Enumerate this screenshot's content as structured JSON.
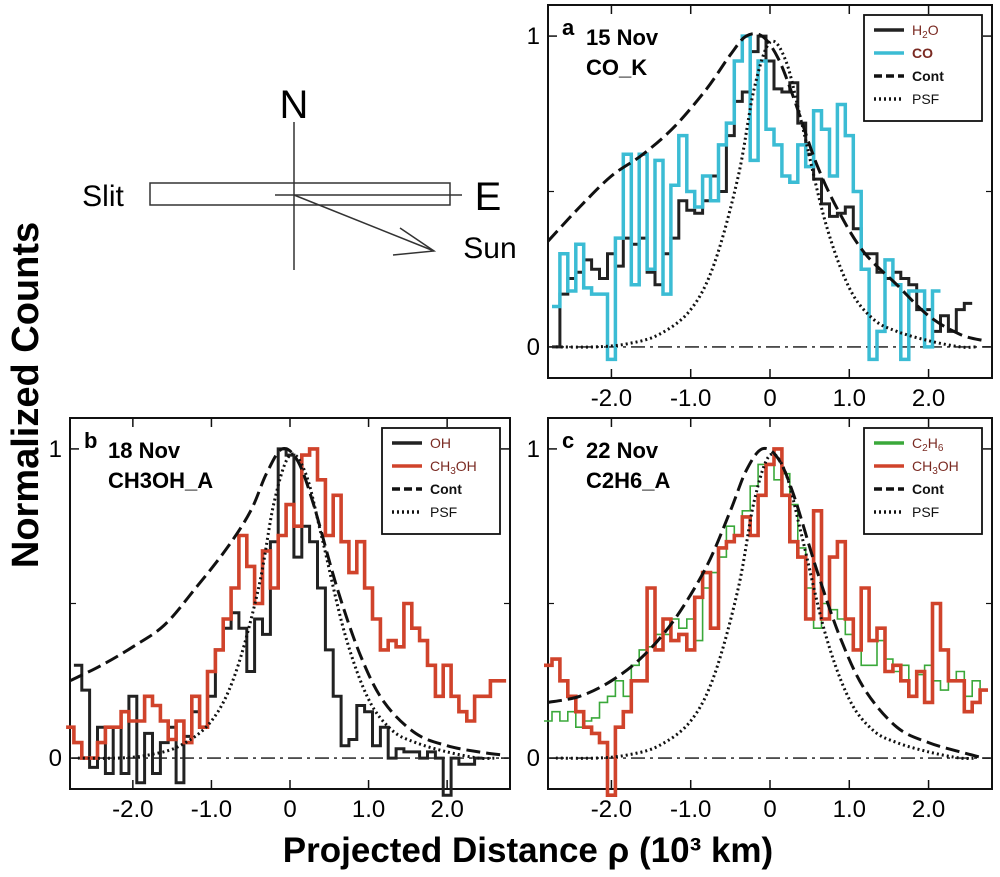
{
  "figure": {
    "ylabel": "Normalized Counts",
    "xlabel": "Projected Distance ρ (10³ km)"
  },
  "compass": {
    "north": "N",
    "east": "E",
    "slit": "Slit",
    "sun": "Sun"
  },
  "chart_data": [
    {
      "type": "line",
      "panel": "a",
      "title": [
        "15 Nov",
        "CO_K"
      ],
      "xlim": [
        -2.8,
        2.8
      ],
      "ylim": [
        -0.1,
        1.1
      ],
      "xticks": [
        "-2.0",
        "-1.0",
        "0",
        "1.0",
        "2.0"
      ],
      "yticks": [
        "0",
        "1"
      ],
      "legend_position": "top-right",
      "series": [
        {
          "name": "H2O",
          "color": "#222222",
          "style": "step",
          "x": [
            -2.7,
            -2.6,
            -2.5,
            -2.4,
            -2.3,
            -2.2,
            -2.1,
            -2.0,
            -1.9,
            -1.8,
            -1.7,
            -1.6,
            -1.5,
            -1.4,
            -1.3,
            -1.2,
            -1.1,
            -1.0,
            -0.9,
            -0.8,
            -0.7,
            -0.6,
            -0.5,
            -0.4,
            -0.3,
            -0.2,
            -0.1,
            0.0,
            0.1,
            0.2,
            0.3,
            0.4,
            0.5,
            0.6,
            0.7,
            0.8,
            0.9,
            1.0,
            1.1,
            1.2,
            1.3,
            1.4,
            1.5,
            1.6,
            1.7,
            1.8,
            1.9,
            2.0,
            2.1,
            2.2,
            2.3,
            2.4,
            2.5
          ],
          "y": [
            0.0,
            0.17,
            0.22,
            0.24,
            0.28,
            0.25,
            0.22,
            0.3,
            0.26,
            0.35,
            0.33,
            0.35,
            0.24,
            0.2,
            0.3,
            0.35,
            0.47,
            0.44,
            0.43,
            0.47,
            0.55,
            0.5,
            0.68,
            0.79,
            0.82,
            0.95,
            1.0,
            0.92,
            0.83,
            0.82,
            0.85,
            0.72,
            0.62,
            0.54,
            0.46,
            0.42,
            0.43,
            0.45,
            0.38,
            0.3,
            0.3,
            0.24,
            0.22,
            0.24,
            0.22,
            0.2,
            0.12,
            0.12,
            0.05,
            0.1,
            0.05,
            0.12,
            0.14
          ]
        },
        {
          "name": "CO",
          "color": "#3bbcd4",
          "style": "step",
          "x": [
            -2.7,
            -2.6,
            -2.5,
            -2.4,
            -2.3,
            -2.2,
            -2.1,
            -2.0,
            -1.9,
            -1.8,
            -1.7,
            -1.6,
            -1.5,
            -1.4,
            -1.3,
            -1.2,
            -1.1,
            -1.0,
            -0.9,
            -0.8,
            -0.7,
            -0.6,
            -0.5,
            -0.4,
            -0.3,
            -0.2,
            -0.1,
            0.0,
            0.1,
            0.2,
            0.3,
            0.4,
            0.5,
            0.6,
            0.7,
            0.8,
            0.9,
            1.0,
            1.1,
            1.2,
            1.3,
            1.4,
            1.5,
            1.6,
            1.7,
            1.8,
            1.9,
            2.0,
            2.1
          ],
          "y": [
            0.13,
            0.3,
            0.18,
            0.33,
            0.19,
            0.17,
            0.17,
            -0.04,
            0.35,
            0.62,
            0.2,
            0.62,
            0.25,
            0.6,
            0.17,
            0.52,
            0.68,
            0.5,
            0.45,
            0.55,
            0.47,
            0.65,
            0.72,
            0.92,
            1.0,
            0.6,
            0.92,
            0.7,
            0.65,
            0.55,
            0.53,
            0.65,
            0.58,
            0.76,
            0.7,
            0.55,
            0.78,
            0.68,
            0.5,
            0.25,
            -0.04,
            0.05,
            0.28,
            0.2,
            -0.04,
            0.18,
            0.18,
            0.0,
            0.18
          ]
        },
        {
          "name": "Cont",
          "color": "#111111",
          "style": "dashed",
          "x": [
            -2.8,
            -2.4,
            -2.0,
            -1.6,
            -1.2,
            -0.8,
            -0.5,
            -0.3,
            -0.1,
            0.1,
            0.3,
            0.6,
            0.9,
            1.2,
            1.6,
            2.0,
            2.4,
            2.7
          ],
          "y": [
            0.34,
            0.45,
            0.55,
            0.62,
            0.71,
            0.83,
            0.94,
            1.0,
            1.0,
            0.93,
            0.8,
            0.58,
            0.42,
            0.3,
            0.2,
            0.1,
            0.04,
            0.02
          ]
        },
        {
          "name": "PSF",
          "color": "#111111",
          "style": "dotted",
          "x": [
            -2.7,
            -2.2,
            -1.8,
            -1.4,
            -1.0,
            -0.7,
            -0.4,
            -0.2,
            0.0,
            0.2,
            0.4,
            0.7,
            1.0,
            1.3,
            1.6,
            2.0,
            2.4,
            2.6
          ],
          "y": [
            0.0,
            0.0,
            0.01,
            0.04,
            0.12,
            0.27,
            0.55,
            0.83,
            0.98,
            0.92,
            0.72,
            0.4,
            0.19,
            0.09,
            0.05,
            0.02,
            0.0,
            0.0
          ]
        }
      ]
    },
    {
      "type": "line",
      "panel": "b",
      "title": [
        "18 Nov",
        "CH3OH_A"
      ],
      "xlim": [
        -2.8,
        2.8
      ],
      "ylim": [
        -0.1,
        1.1
      ],
      "xticks": [
        "-2.0",
        "-1.0",
        "0",
        "1.0",
        "2.0"
      ],
      "yticks": [
        "0",
        "1"
      ],
      "legend_position": "top-right",
      "series": [
        {
          "name": "OH",
          "color": "#222222",
          "style": "step",
          "x": [
            -2.7,
            -2.6,
            -2.5,
            -2.4,
            -2.3,
            -2.2,
            -2.1,
            -2.0,
            -1.9,
            -1.8,
            -1.7,
            -1.6,
            -1.5,
            -1.4,
            -1.3,
            -1.2,
            -1.1,
            -1.0,
            -0.9,
            -0.8,
            -0.7,
            -0.6,
            -0.5,
            -0.4,
            -0.3,
            -0.2,
            -0.1,
            0.0,
            0.1,
            0.2,
            0.3,
            0.4,
            0.5,
            0.6,
            0.7,
            0.8,
            0.9,
            1.0,
            1.1,
            1.2,
            1.3,
            1.4,
            1.5,
            1.6,
            1.7,
            1.8,
            1.9,
            2.0,
            2.1,
            2.2,
            2.3,
            2.4
          ],
          "y": [
            0.3,
            0.22,
            -0.03,
            0.1,
            -0.05,
            0.1,
            -0.05,
            0.2,
            -0.08,
            0.08,
            -0.05,
            0.05,
            0.1,
            -0.08,
            0.07,
            0.15,
            0.1,
            0.2,
            0.35,
            0.42,
            0.47,
            0.42,
            0.28,
            0.45,
            0.4,
            0.7,
            1.0,
            0.98,
            0.65,
            0.75,
            0.7,
            0.55,
            0.35,
            0.2,
            0.04,
            0.06,
            0.17,
            0.15,
            0.04,
            0.1,
            0.0,
            0.03,
            0.02,
            0.02,
            0.0,
            0.02,
            0.0,
            -0.12,
            0.0,
            -0.02,
            -0.02,
            0.0
          ]
        },
        {
          "name": "CH3OH",
          "color": "#d0432b",
          "style": "step",
          "x": [
            -2.8,
            -2.7,
            -2.6,
            -2.5,
            -2.4,
            -2.3,
            -2.2,
            -2.1,
            -2.0,
            -1.9,
            -1.8,
            -1.7,
            -1.6,
            -1.5,
            -1.4,
            -1.3,
            -1.2,
            -1.1,
            -1.0,
            -0.9,
            -0.8,
            -0.7,
            -0.6,
            -0.5,
            -0.4,
            -0.3,
            -0.2,
            -0.1,
            0.0,
            0.1,
            0.2,
            0.3,
            0.4,
            0.5,
            0.6,
            0.7,
            0.8,
            0.9,
            1.0,
            1.1,
            1.2,
            1.3,
            1.4,
            1.5,
            1.6,
            1.7,
            1.8,
            1.9,
            2.0,
            2.1,
            2.2,
            2.3,
            2.4,
            2.5,
            2.6,
            2.7
          ],
          "y": [
            0.1,
            0.05,
            0.0,
            0.0,
            0.05,
            0.1,
            0.1,
            0.15,
            0.12,
            0.12,
            0.2,
            0.17,
            0.12,
            0.06,
            0.12,
            0.05,
            0.2,
            0.1,
            0.28,
            0.35,
            0.45,
            0.55,
            0.72,
            0.62,
            0.5,
            0.67,
            0.55,
            0.72,
            0.82,
            0.75,
            0.98,
            1.0,
            0.9,
            0.72,
            0.85,
            0.7,
            0.6,
            0.7,
            0.55,
            0.45,
            0.35,
            0.38,
            0.36,
            0.5,
            0.42,
            0.38,
            0.3,
            0.2,
            0.3,
            0.2,
            0.15,
            0.12,
            0.2,
            0.2,
            0.25,
            0.25
          ]
        },
        {
          "name": "Cont",
          "color": "#111111",
          "style": "dashed",
          "x": [
            -2.8,
            -2.4,
            -2.0,
            -1.6,
            -1.2,
            -0.8,
            -0.5,
            -0.3,
            -0.1,
            0.1,
            0.3,
            0.6,
            0.9,
            1.2,
            1.6,
            2.0,
            2.4,
            2.7
          ],
          "y": [
            0.25,
            0.3,
            0.36,
            0.43,
            0.55,
            0.68,
            0.8,
            0.92,
            1.0,
            0.96,
            0.82,
            0.55,
            0.33,
            0.18,
            0.08,
            0.04,
            0.02,
            0.01
          ]
        },
        {
          "name": "PSF",
          "color": "#111111",
          "style": "dotted",
          "x": [
            -2.7,
            -2.2,
            -1.8,
            -1.4,
            -1.0,
            -0.7,
            -0.4,
            -0.2,
            0.0,
            0.2,
            0.4,
            0.7,
            1.0,
            1.3,
            1.6,
            2.0,
            2.4,
            2.6
          ],
          "y": [
            0.0,
            0.0,
            0.01,
            0.04,
            0.12,
            0.27,
            0.55,
            0.83,
            0.98,
            0.92,
            0.72,
            0.4,
            0.19,
            0.09,
            0.05,
            0.02,
            0.0,
            0.0
          ]
        }
      ]
    },
    {
      "type": "line",
      "panel": "c",
      "title": [
        "22 Nov",
        "C2H6_A"
      ],
      "xlim": [
        -2.8,
        2.8
      ],
      "ylim": [
        -0.1,
        1.1
      ],
      "xticks": [
        "-2.0",
        "-1.0",
        "0",
        "1.0",
        "2.0"
      ],
      "yticks": [
        "0",
        "1"
      ],
      "legend_position": "top-right",
      "series": [
        {
          "name": "C2H6",
          "color": "#3aa83a",
          "style": "step",
          "x": [
            -2.8,
            -2.7,
            -2.6,
            -2.5,
            -2.4,
            -2.3,
            -2.2,
            -2.1,
            -2.0,
            -1.9,
            -1.8,
            -1.7,
            -1.6,
            -1.5,
            -1.4,
            -1.3,
            -1.2,
            -1.1,
            -1.0,
            -0.9,
            -0.8,
            -0.7,
            -0.6,
            -0.5,
            -0.4,
            -0.3,
            -0.2,
            -0.1,
            0.0,
            0.1,
            0.2,
            0.3,
            0.4,
            0.5,
            0.6,
            0.7,
            0.8,
            0.9,
            1.0,
            1.1,
            1.2,
            1.3,
            1.4,
            1.5,
            1.6,
            1.7,
            1.8,
            1.9,
            2.0,
            2.1,
            2.2,
            2.3,
            2.4,
            2.5,
            2.6,
            2.7
          ],
          "y": [
            0.12,
            0.15,
            0.12,
            0.15,
            0.1,
            0.12,
            0.13,
            0.18,
            0.2,
            0.25,
            0.2,
            0.3,
            0.35,
            0.36,
            0.4,
            0.4,
            0.45,
            0.42,
            0.45,
            0.38,
            0.55,
            0.6,
            0.65,
            0.75,
            0.72,
            0.8,
            0.88,
            0.95,
            0.95,
            0.9,
            0.92,
            0.82,
            0.68,
            0.55,
            0.42,
            0.5,
            0.48,
            0.45,
            0.4,
            0.35,
            0.3,
            0.3,
            0.38,
            0.32,
            0.28,
            0.3,
            0.2,
            0.27,
            0.3,
            0.25,
            0.22,
            0.25,
            0.28,
            0.2,
            0.25,
            0.22
          ]
        },
        {
          "name": "CH3OH",
          "color": "#d0432b",
          "style": "step",
          "x": [
            -2.8,
            -2.7,
            -2.6,
            -2.5,
            -2.4,
            -2.3,
            -2.2,
            -2.1,
            -2.0,
            -1.9,
            -1.8,
            -1.7,
            -1.6,
            -1.5,
            -1.4,
            -1.3,
            -1.2,
            -1.1,
            -1.0,
            -0.9,
            -0.8,
            -0.7,
            -0.6,
            -0.5,
            -0.4,
            -0.3,
            -0.2,
            -0.1,
            0.0,
            0.1,
            0.2,
            0.3,
            0.4,
            0.5,
            0.6,
            0.7,
            0.8,
            0.9,
            1.0,
            1.1,
            1.2,
            1.3,
            1.4,
            1.5,
            1.6,
            1.7,
            1.8,
            1.9,
            2.0,
            2.1,
            2.2,
            2.3,
            2.4,
            2.5,
            2.6,
            2.7
          ],
          "y": [
            0.3,
            0.32,
            0.25,
            0.2,
            0.15,
            0.1,
            0.08,
            0.05,
            -0.12,
            0.1,
            0.15,
            0.25,
            0.25,
            0.55,
            0.35,
            0.45,
            0.38,
            0.4,
            0.35,
            0.52,
            0.6,
            0.42,
            0.68,
            0.7,
            0.72,
            0.78,
            0.72,
            0.85,
            0.95,
            1.0,
            0.85,
            0.7,
            0.65,
            0.45,
            0.8,
            0.45,
            0.65,
            0.7,
            0.45,
            0.35,
            0.55,
            0.38,
            0.42,
            0.28,
            0.3,
            0.25,
            0.2,
            0.28,
            0.18,
            0.5,
            0.35,
            0.25,
            0.25,
            0.15,
            0.18,
            0.22
          ]
        },
        {
          "name": "Cont",
          "color": "#111111",
          "style": "dashed",
          "x": [
            -2.8,
            -2.4,
            -2.0,
            -1.6,
            -1.2,
            -0.8,
            -0.5,
            -0.3,
            -0.1,
            0.1,
            0.3,
            0.6,
            0.9,
            1.2,
            1.6,
            2.0,
            2.4,
            2.7
          ],
          "y": [
            0.18,
            0.2,
            0.25,
            0.33,
            0.45,
            0.62,
            0.8,
            0.93,
            1.0,
            0.97,
            0.85,
            0.6,
            0.38,
            0.22,
            0.1,
            0.05,
            0.02,
            0.0
          ]
        },
        {
          "name": "PSF",
          "color": "#111111",
          "style": "dotted",
          "x": [
            -2.7,
            -2.2,
            -1.8,
            -1.4,
            -1.0,
            -0.7,
            -0.4,
            -0.2,
            0.0,
            0.2,
            0.4,
            0.7,
            1.0,
            1.3,
            1.6,
            2.0,
            2.4,
            2.6
          ],
          "y": [
            0.0,
            0.0,
            0.01,
            0.04,
            0.12,
            0.27,
            0.55,
            0.83,
            0.98,
            0.92,
            0.72,
            0.4,
            0.19,
            0.09,
            0.05,
            0.02,
            0.0,
            0.0
          ]
        }
      ]
    }
  ]
}
